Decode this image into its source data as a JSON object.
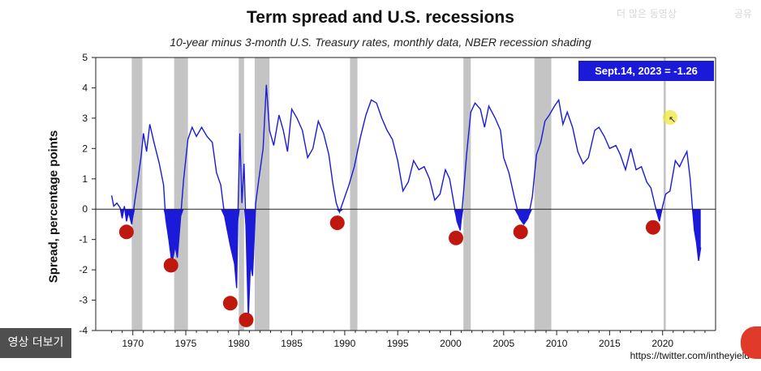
{
  "chart_data": {
    "type": "area",
    "title": "Term spread and U.S. recessions",
    "subtitle": "10-year minus 3-month U.S. Treasury rates, monthly data, NBER recession shading",
    "ylabel": "Spread, percentage points",
    "xlabel": "",
    "xlim": [
      1966.5,
      2025
    ],
    "ylim": [
      -4,
      5
    ],
    "yticks": [
      5,
      4,
      3,
      2,
      1,
      0,
      -1,
      -2,
      -3,
      -4
    ],
    "xticks": [
      1970,
      1975,
      1980,
      1985,
      1990,
      1995,
      2000,
      2005,
      2010,
      2015,
      2020
    ],
    "series": [
      {
        "color": "#1a1ad8",
        "points": [
          [
            1968.0,
            0.45
          ],
          [
            1968.2,
            0.1
          ],
          [
            1968.5,
            0.2
          ],
          [
            1968.8,
            0.05
          ],
          [
            1969.0,
            -0.3
          ],
          [
            1969.2,
            0.1
          ],
          [
            1969.4,
            -0.4
          ],
          [
            1969.6,
            -0.1
          ],
          [
            1969.9,
            -0.5
          ],
          [
            1970.2,
            0.3
          ],
          [
            1970.5,
            1.0
          ],
          [
            1970.8,
            1.8
          ],
          [
            1971.0,
            2.5
          ],
          [
            1971.3,
            1.9
          ],
          [
            1971.6,
            2.8
          ],
          [
            1972.0,
            2.2
          ],
          [
            1972.5,
            1.5
          ],
          [
            1972.9,
            0.8
          ],
          [
            1973.1,
            -0.3
          ],
          [
            1973.4,
            -1.0
          ],
          [
            1973.7,
            -1.8
          ],
          [
            1974.0,
            -1.2
          ],
          [
            1974.2,
            -1.6
          ],
          [
            1974.5,
            -0.3
          ],
          [
            1974.8,
            1.0
          ],
          [
            1975.2,
            2.3
          ],
          [
            1975.6,
            2.7
          ],
          [
            1976.0,
            2.4
          ],
          [
            1976.5,
            2.7
          ],
          [
            1977.0,
            2.4
          ],
          [
            1977.5,
            2.2
          ],
          [
            1977.9,
            1.2
          ],
          [
            1978.3,
            0.8
          ],
          [
            1978.7,
            -0.3
          ],
          [
            1979.2,
            -1.2
          ],
          [
            1979.6,
            -1.8
          ],
          [
            1979.8,
            -2.6
          ],
          [
            1979.9,
            -0.5
          ],
          [
            1980.1,
            2.5
          ],
          [
            1980.3,
            0.2
          ],
          [
            1980.5,
            1.5
          ],
          [
            1980.7,
            -0.8
          ],
          [
            1980.9,
            -3.6
          ],
          [
            1981.1,
            -1.8
          ],
          [
            1981.3,
            -2.2
          ],
          [
            1981.6,
            0.2
          ],
          [
            1981.9,
            1.0
          ],
          [
            1982.3,
            2.0
          ],
          [
            1982.6,
            4.1
          ],
          [
            1982.9,
            2.6
          ],
          [
            1983.3,
            2.1
          ],
          [
            1983.8,
            3.1
          ],
          [
            1984.2,
            2.6
          ],
          [
            1984.6,
            1.9
          ],
          [
            1985.0,
            3.3
          ],
          [
            1985.5,
            3.0
          ],
          [
            1986.0,
            2.6
          ],
          [
            1986.5,
            1.7
          ],
          [
            1987.0,
            2.0
          ],
          [
            1987.5,
            2.9
          ],
          [
            1988.0,
            2.5
          ],
          [
            1988.5,
            1.8
          ],
          [
            1988.9,
            0.8
          ],
          [
            1989.2,
            0.2
          ],
          [
            1989.5,
            -0.1
          ],
          [
            1989.9,
            0.3
          ],
          [
            1990.4,
            0.8
          ],
          [
            1990.9,
            1.4
          ],
          [
            1991.5,
            2.4
          ],
          [
            1992.0,
            3.1
          ],
          [
            1992.5,
            3.6
          ],
          [
            1993.0,
            3.5
          ],
          [
            1993.5,
            3.0
          ],
          [
            1994.0,
            2.6
          ],
          [
            1994.5,
            2.3
          ],
          [
            1995.0,
            1.6
          ],
          [
            1995.5,
            0.6
          ],
          [
            1996.0,
            0.9
          ],
          [
            1996.5,
            1.6
          ],
          [
            1997.0,
            1.3
          ],
          [
            1997.5,
            1.4
          ],
          [
            1998.0,
            1.0
          ],
          [
            1998.5,
            0.3
          ],
          [
            1999.0,
            0.5
          ],
          [
            1999.5,
            1.3
          ],
          [
            1999.9,
            1.0
          ],
          [
            2000.3,
            0.2
          ],
          [
            2000.6,
            -0.4
          ],
          [
            2000.9,
            -0.7
          ],
          [
            2001.2,
            0.5
          ],
          [
            2001.5,
            1.8
          ],
          [
            2001.9,
            3.2
          ],
          [
            2002.3,
            3.5
          ],
          [
            2002.8,
            3.3
          ],
          [
            2003.2,
            2.7
          ],
          [
            2003.6,
            3.4
          ],
          [
            2004.2,
            3.0
          ],
          [
            2004.7,
            2.6
          ],
          [
            2005.0,
            1.7
          ],
          [
            2005.5,
            1.2
          ],
          [
            2006.0,
            0.4
          ],
          [
            2006.5,
            -0.3
          ],
          [
            2006.9,
            -0.5
          ],
          [
            2007.3,
            -0.3
          ],
          [
            2007.7,
            0.4
          ],
          [
            2008.1,
            1.8
          ],
          [
            2008.5,
            2.2
          ],
          [
            2008.9,
            2.9
          ],
          [
            2009.3,
            3.1
          ],
          [
            2009.8,
            3.4
          ],
          [
            2010.2,
            3.6
          ],
          [
            2010.6,
            2.8
          ],
          [
            2011.0,
            3.2
          ],
          [
            2011.5,
            2.7
          ],
          [
            2012.0,
            1.9
          ],
          [
            2012.5,
            1.5
          ],
          [
            2013.0,
            1.7
          ],
          [
            2013.6,
            2.6
          ],
          [
            2014.0,
            2.7
          ],
          [
            2014.5,
            2.4
          ],
          [
            2015.0,
            2.0
          ],
          [
            2015.6,
            2.1
          ],
          [
            2016.0,
            1.8
          ],
          [
            2016.5,
            1.3
          ],
          [
            2017.0,
            2.0
          ],
          [
            2017.5,
            1.3
          ],
          [
            2018.0,
            1.4
          ],
          [
            2018.5,
            0.9
          ],
          [
            2018.9,
            0.7
          ],
          [
            2019.3,
            0.1
          ],
          [
            2019.7,
            -0.4
          ],
          [
            2020.0,
            0.1
          ],
          [
            2020.3,
            0.5
          ],
          [
            2020.7,
            0.6
          ],
          [
            2021.2,
            1.6
          ],
          [
            2021.6,
            1.4
          ],
          [
            2022.0,
            1.7
          ],
          [
            2022.3,
            1.9
          ],
          [
            2022.6,
            1.0
          ],
          [
            2022.8,
            0.1
          ],
          [
            2023.0,
            -0.7
          ],
          [
            2023.2,
            -1.1
          ],
          [
            2023.4,
            -1.7
          ],
          [
            2023.6,
            -1.26
          ]
        ]
      }
    ],
    "recessions": [
      [
        1969.9,
        1970.9
      ],
      [
        1973.9,
        1975.2
      ],
      [
        1980.0,
        1980.5
      ],
      [
        1981.5,
        1982.9
      ],
      [
        1990.5,
        1991.2
      ],
      [
        2001.2,
        2001.9
      ],
      [
        2007.9,
        2009.5
      ],
      [
        2020.1,
        2020.3
      ]
    ],
    "markers": [
      [
        1969.4,
        -0.75
      ],
      [
        1973.6,
        -1.85
      ],
      [
        1979.2,
        -3.1
      ],
      [
        1980.7,
        -3.65
      ],
      [
        1989.3,
        -0.45
      ],
      [
        2000.5,
        -0.95
      ],
      [
        2006.6,
        -0.75
      ],
      [
        2019.1,
        -0.6
      ]
    ],
    "marker_color": "#c0180e",
    "recession_color": "#c4c4c4",
    "grid": false,
    "annotation": "Sept.14, 2023 = -1.26"
  },
  "overlay": {
    "more_videos_label": "영상 더보기"
  },
  "source_text": "https://twitter.com/intheyield",
  "ghost_text_1": "더 많은 동영상",
  "ghost_text_2": "공유"
}
